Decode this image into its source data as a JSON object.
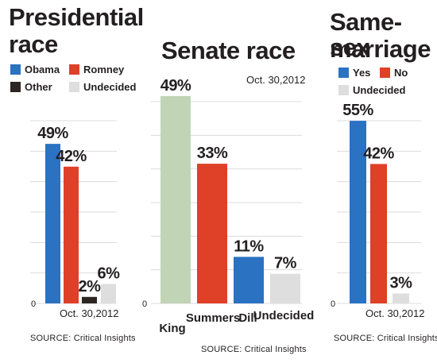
{
  "colors": {
    "blue": "#2b72c2",
    "red": "#de4028",
    "dark": "#2c2521",
    "light_gray": "#dedede",
    "sage": "#c2d4b6",
    "grid": "#dcdcdc"
  },
  "panels": {
    "presidential": {
      "title_line1": "Presidential",
      "title_line2": "race",
      "legend": [
        {
          "label": "Obama",
          "color": "#2b72c2"
        },
        {
          "label": "Romney",
          "color": "#de4028"
        },
        {
          "label": "Other",
          "color": "#2c2521"
        },
        {
          "label": "Undecided",
          "color": "#dedede"
        }
      ],
      "zero_label": "0",
      "date": "Oct. 30,2012",
      "source": "SOURCE: Critical Insights"
    },
    "senate": {
      "title": "Senate race",
      "date": "Oct. 30,2012",
      "zero_label": "0",
      "source": "SOURCE: Critical Insights"
    },
    "samesex": {
      "title_line1": "Same-sex",
      "title_line2": "marriage",
      "legend": [
        {
          "label": "Yes",
          "color": "#2b72c2"
        },
        {
          "label": "No",
          "color": "#de4028"
        },
        {
          "label": "Undecided",
          "color": "#dedede"
        }
      ],
      "zero_label": "0",
      "date": "Oct. 30,2012",
      "source": "SOURCE: Critical Insights"
    }
  },
  "chart_data": [
    {
      "type": "bar",
      "title": "Presidential race",
      "categories": [
        "Obama",
        "Romney",
        "Other",
        "Undecided"
      ],
      "values": [
        49,
        42,
        2,
        6
      ],
      "value_labels": [
        "49%",
        "42%",
        "2%",
        "6%"
      ],
      "colors": [
        "#2b72c2",
        "#de4028",
        "#2c2521",
        "#dedede"
      ],
      "ylim": [
        0,
        55
      ],
      "grid": true
    },
    {
      "type": "bar",
      "title": "Senate race",
      "categories": [
        "King",
        "Summers",
        "Dill",
        "Undecided"
      ],
      "values": [
        49,
        33,
        11,
        7
      ],
      "value_labels": [
        "49%",
        "33%",
        "11%",
        "7%"
      ],
      "colors": [
        "#c2d4b6",
        "#de4028",
        "#2b72c2",
        "#dedede"
      ],
      "ylim": [
        0,
        55
      ],
      "grid": true
    },
    {
      "type": "bar",
      "title": "Same-sex marriage",
      "categories": [
        "Yes",
        "No",
        "Undecided"
      ],
      "values": [
        55,
        42,
        3
      ],
      "value_labels": [
        "55%",
        "42%",
        "3%"
      ],
      "colors": [
        "#2b72c2",
        "#de4028",
        "#dedede"
      ],
      "ylim": [
        0,
        55
      ],
      "grid": true
    }
  ]
}
